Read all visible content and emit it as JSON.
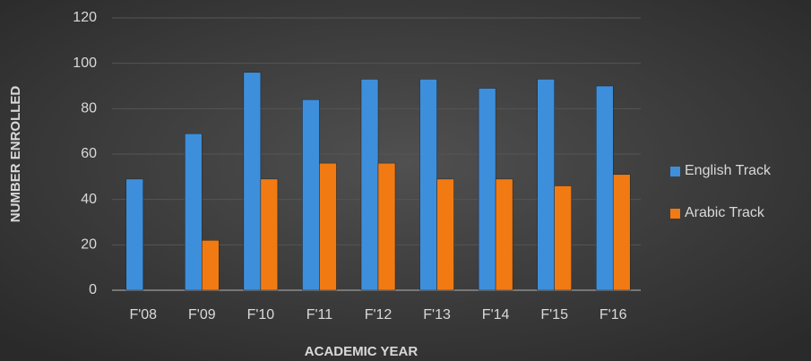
{
  "chart_data": {
    "type": "bar",
    "categories": [
      "F'08",
      "F'09",
      "F'10",
      "F'11",
      "F'12",
      "F'13",
      "F'14",
      "F'15",
      "F'16"
    ],
    "series": [
      {
        "name": "English Track",
        "color": "#3d8fdc",
        "values": [
          49,
          69,
          96,
          84,
          93,
          93,
          89,
          93,
          90
        ]
      },
      {
        "name": "Arabic Track",
        "color": "#f27a12",
        "values": [
          null,
          22,
          49,
          56,
          56,
          49,
          49,
          46,
          51
        ]
      }
    ],
    "xlabel": "ACADEMIC YEAR",
    "ylabel": "NUMBER ENROLLED",
    "ylim": [
      0,
      120
    ],
    "yticks": [
      0,
      20,
      40,
      60,
      80,
      100,
      120
    ],
    "grid": true,
    "legend": "right"
  }
}
